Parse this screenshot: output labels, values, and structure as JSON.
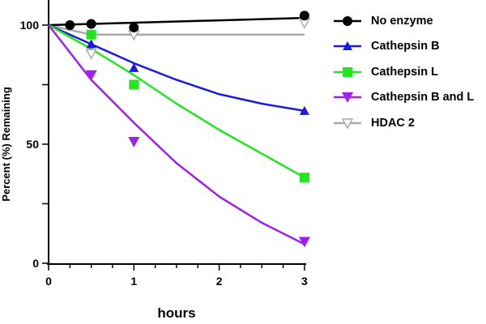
{
  "chart_data": {
    "type": "scatter",
    "xlabel": "hours",
    "ylabel": "Percent (%) Remaining",
    "xlim": [
      0,
      3
    ],
    "ylim": [
      0,
      100
    ],
    "xticks": [
      "0",
      "1",
      "2",
      "3"
    ],
    "yticks": [
      "0",
      "50",
      "100"
    ],
    "legend_position": "right",
    "series": [
      {
        "name": "No enzyme",
        "color": "#000000",
        "marker": "circle",
        "points": [
          [
            0.25,
            100
          ],
          [
            0.5,
            100.5
          ],
          [
            1,
            99
          ],
          [
            3,
            104
          ]
        ],
        "fit": [
          [
            0,
            100
          ],
          [
            3,
            103
          ]
        ]
      },
      {
        "name": "Cathepsin B",
        "color": "#1a1ae6",
        "marker": "triangle-up",
        "points": [
          [
            0.5,
            92
          ],
          [
            1,
            82
          ],
          [
            3,
            64
          ]
        ],
        "fit": [
          [
            0,
            100
          ],
          [
            0.5,
            92
          ],
          [
            1,
            84
          ],
          [
            1.5,
            77
          ],
          [
            2,
            71
          ],
          [
            2.5,
            67
          ],
          [
            3,
            64
          ]
        ]
      },
      {
        "name": "Cathepsin L",
        "color": "#22e622",
        "marker": "square",
        "points": [
          [
            0.5,
            96
          ],
          [
            1,
            75
          ],
          [
            3,
            36
          ]
        ],
        "fit": [
          [
            0,
            100
          ],
          [
            0.5,
            90
          ],
          [
            1,
            79
          ],
          [
            1.5,
            67
          ],
          [
            2,
            56
          ],
          [
            2.5,
            46
          ],
          [
            3,
            36
          ]
        ]
      },
      {
        "name": "Cathepsin B and L",
        "color": "#a020f0",
        "marker": "triangle-down",
        "points": [
          [
            0.5,
            79
          ],
          [
            1,
            51
          ],
          [
            3,
            9
          ]
        ],
        "fit": [
          [
            0,
            100
          ],
          [
            0.5,
            77
          ],
          [
            1,
            59
          ],
          [
            1.5,
            42
          ],
          [
            2,
            28
          ],
          [
            2.5,
            17
          ],
          [
            3,
            8
          ]
        ]
      },
      {
        "name": "HDAC 2",
        "color": "#aaaaaa",
        "marker": "triangle-down-open",
        "points": [
          [
            0.5,
            88
          ],
          [
            1,
            96
          ],
          [
            3,
            101
          ]
        ],
        "fit": [
          [
            0,
            100
          ],
          [
            0.5,
            96
          ],
          [
            3,
            96
          ]
        ]
      }
    ]
  }
}
